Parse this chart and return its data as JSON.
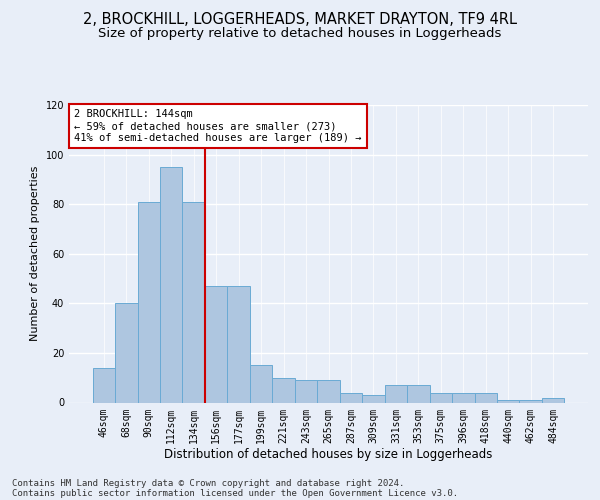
{
  "title1": "2, BROCKHILL, LOGGERHEADS, MARKET DRAYTON, TF9 4RL",
  "title2": "Size of property relative to detached houses in Loggerheads",
  "xlabel": "Distribution of detached houses by size in Loggerheads",
  "ylabel": "Number of detached properties",
  "categories": [
    "46sqm",
    "68sqm",
    "90sqm",
    "112sqm",
    "134sqm",
    "156sqm",
    "177sqm",
    "199sqm",
    "221sqm",
    "243sqm",
    "265sqm",
    "287sqm",
    "309sqm",
    "331sqm",
    "353sqm",
    "375sqm",
    "396sqm",
    "418sqm",
    "440sqm",
    "462sqm",
    "484sqm"
  ],
  "values": [
    14,
    40,
    81,
    95,
    81,
    47,
    47,
    15,
    10,
    9,
    9,
    4,
    3,
    7,
    7,
    4,
    4,
    4,
    1,
    1,
    2
  ],
  "bar_color": "#aec6e0",
  "bar_edge_color": "#6aaad4",
  "vline_color": "#cc0000",
  "vline_x": 4.5,
  "annotation_text": "2 BROCKHILL: 144sqm\n← 59% of detached houses are smaller (273)\n41% of semi-detached houses are larger (189) →",
  "annotation_box_color": "#ffffff",
  "annotation_box_edge": "#cc0000",
  "ylim": [
    0,
    120
  ],
  "yticks": [
    0,
    20,
    40,
    60,
    80,
    100,
    120
  ],
  "footer1": "Contains HM Land Registry data © Crown copyright and database right 2024.",
  "footer2": "Contains public sector information licensed under the Open Government Licence v3.0.",
  "bg_color": "#e8eef8",
  "grid_color": "#ffffff",
  "title1_fontsize": 10.5,
  "title2_fontsize": 9.5,
  "xlabel_fontsize": 8.5,
  "ylabel_fontsize": 8,
  "tick_fontsize": 7,
  "annotation_fontsize": 7.5,
  "footer_fontsize": 6.5
}
